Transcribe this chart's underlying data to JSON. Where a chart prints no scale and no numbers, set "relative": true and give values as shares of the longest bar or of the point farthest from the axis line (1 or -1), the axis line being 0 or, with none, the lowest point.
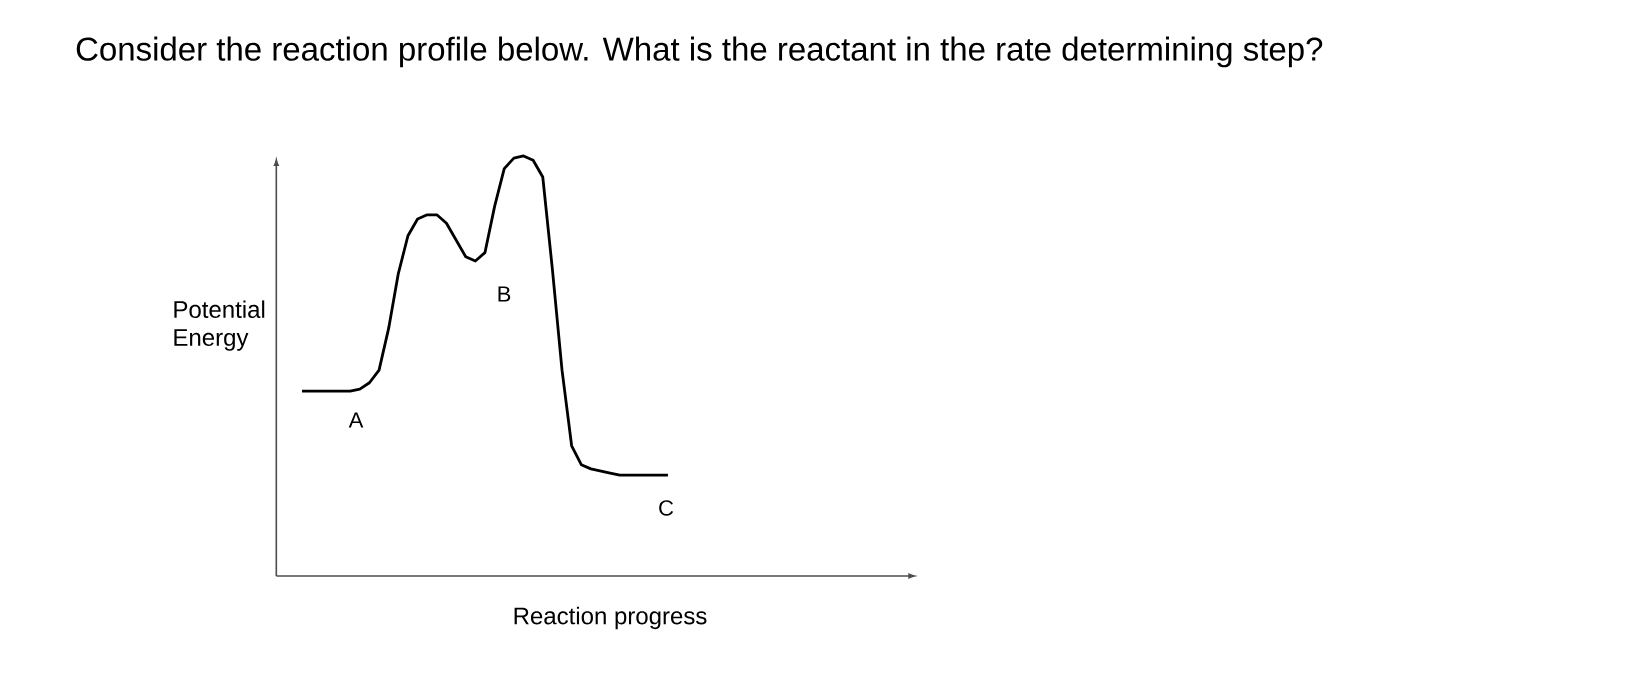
{
  "chart_data": {
    "type": "line",
    "title": "Consider the reaction profile below.  What is the reactant in the rate determining step?",
    "xlabel": "Reaction progress",
    "ylabel": "Potential Energy",
    "relative": true,
    "color": "#000000",
    "marker": "none",
    "categories": [
      null,
      null,
      null,
      null,
      null,
      null,
      null,
      null,
      null,
      null,
      null,
      null,
      null,
      null,
      null,
      null,
      null,
      null,
      null,
      null,
      null,
      null,
      null,
      null,
      null,
      null,
      null,
      null,
      null,
      null,
      null,
      null,
      null,
      null,
      null,
      null,
      null,
      null,
      null
    ],
    "values": [
      0.44,
      0.44,
      0.44,
      0.44,
      0.44,
      0.44,
      0.445,
      0.46,
      0.49,
      0.59,
      0.72,
      0.81,
      0.85,
      0.86,
      0.86,
      0.84,
      0.8,
      0.76,
      0.75,
      0.77,
      0.88,
      0.97,
      0.995,
      1.0,
      0.99,
      0.95,
      0.73,
      0.49,
      0.31,
      0.265,
      0.255,
      0.25,
      0.245,
      0.24,
      0.24,
      0.24,
      0.24,
      0.24,
      0.24
    ],
    "annotations": [
      "A",
      "B",
      "C"
    ]
  }
}
